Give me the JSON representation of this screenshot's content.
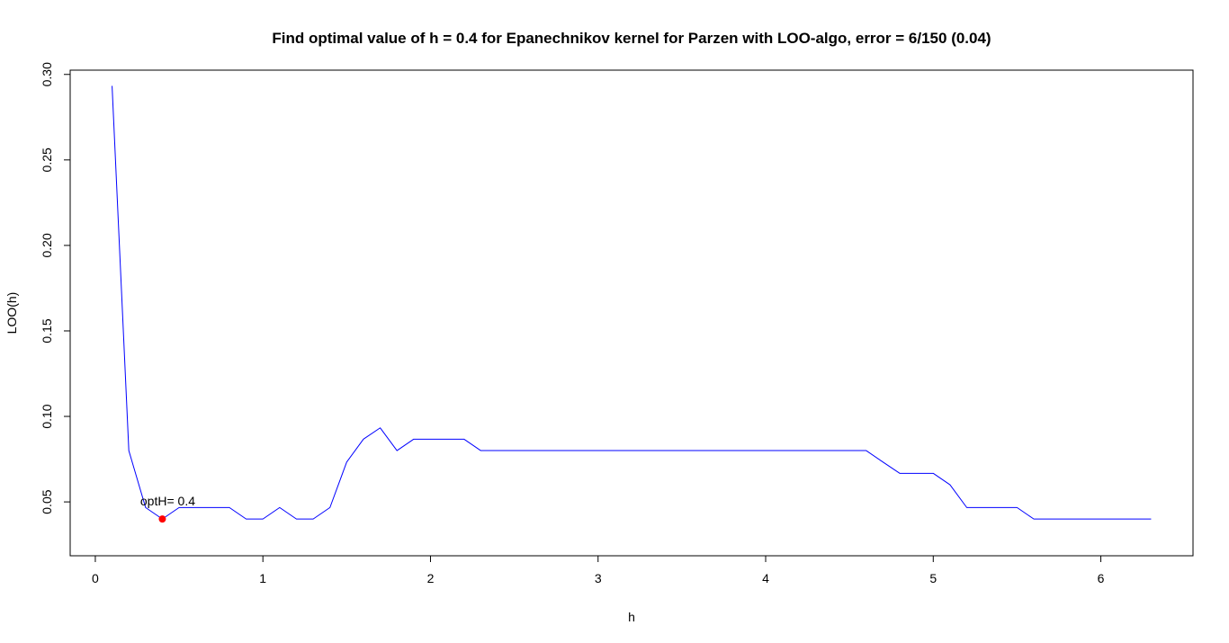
{
  "chart_data": {
    "type": "line",
    "title": "Find optimal value of h = 0.4 for Epanechnikov kernel for Parzen with LOO-algo, error = 6/150 (0.04)",
    "xlabel": "h",
    "ylabel": "LOO(h)",
    "xlim": [
      -0.15,
      6.55
    ],
    "ylim": [
      0.0185,
      0.3025
    ],
    "x_ticks": [
      0,
      1,
      2,
      3,
      4,
      5,
      6
    ],
    "x_tick_labels": [
      "0",
      "1",
      "2",
      "3",
      "4",
      "5",
      "6"
    ],
    "y_ticks": [
      0.05,
      0.1,
      0.15,
      0.2,
      0.25,
      0.3
    ],
    "y_tick_labels": [
      "0.05",
      "0.10",
      "0.15",
      "0.20",
      "0.25",
      "0.30"
    ],
    "grid": false,
    "series": [
      {
        "color": "#0000ff",
        "x": [
          0.1,
          0.2,
          0.3,
          0.4,
          0.5,
          0.6,
          0.7,
          0.8,
          0.9,
          1.0,
          1.1,
          1.2,
          1.3,
          1.4,
          1.5,
          1.6,
          1.7,
          1.8,
          1.9,
          2.0,
          2.1,
          2.2,
          2.3,
          2.4,
          2.5,
          2.6,
          2.7,
          2.8,
          2.9,
          3.0,
          3.1,
          3.2,
          3.3,
          3.4,
          3.5,
          3.6,
          3.7,
          3.8,
          3.9,
          4.0,
          4.1,
          4.2,
          4.3,
          4.4,
          4.5,
          4.6,
          4.7,
          4.8,
          4.9,
          5.0,
          5.1,
          5.2,
          5.3,
          5.4,
          5.5,
          5.6,
          5.7,
          5.8,
          5.9,
          6.0,
          6.1,
          6.2,
          6.3
        ],
        "y": [
          0.2933,
          0.08,
          0.0467,
          0.04,
          0.0467,
          0.0467,
          0.0467,
          0.0467,
          0.04,
          0.04,
          0.0467,
          0.04,
          0.04,
          0.0467,
          0.0733,
          0.0867,
          0.0933,
          0.08,
          0.0867,
          0.0867,
          0.0867,
          0.0867,
          0.08,
          0.08,
          0.08,
          0.08,
          0.08,
          0.08,
          0.08,
          0.08,
          0.08,
          0.08,
          0.08,
          0.08,
          0.08,
          0.08,
          0.08,
          0.08,
          0.08,
          0.08,
          0.08,
          0.08,
          0.08,
          0.08,
          0.08,
          0.08,
          0.0733,
          0.0667,
          0.0667,
          0.0667,
          0.06,
          0.0467,
          0.0467,
          0.0467,
          0.0467,
          0.04,
          0.04,
          0.04,
          0.04,
          0.04,
          0.04,
          0.04,
          0.04
        ]
      }
    ],
    "optimum": {
      "x": 0.4,
      "y": 0.04,
      "color": "#ff0000",
      "label": "optH= 0.4"
    }
  }
}
